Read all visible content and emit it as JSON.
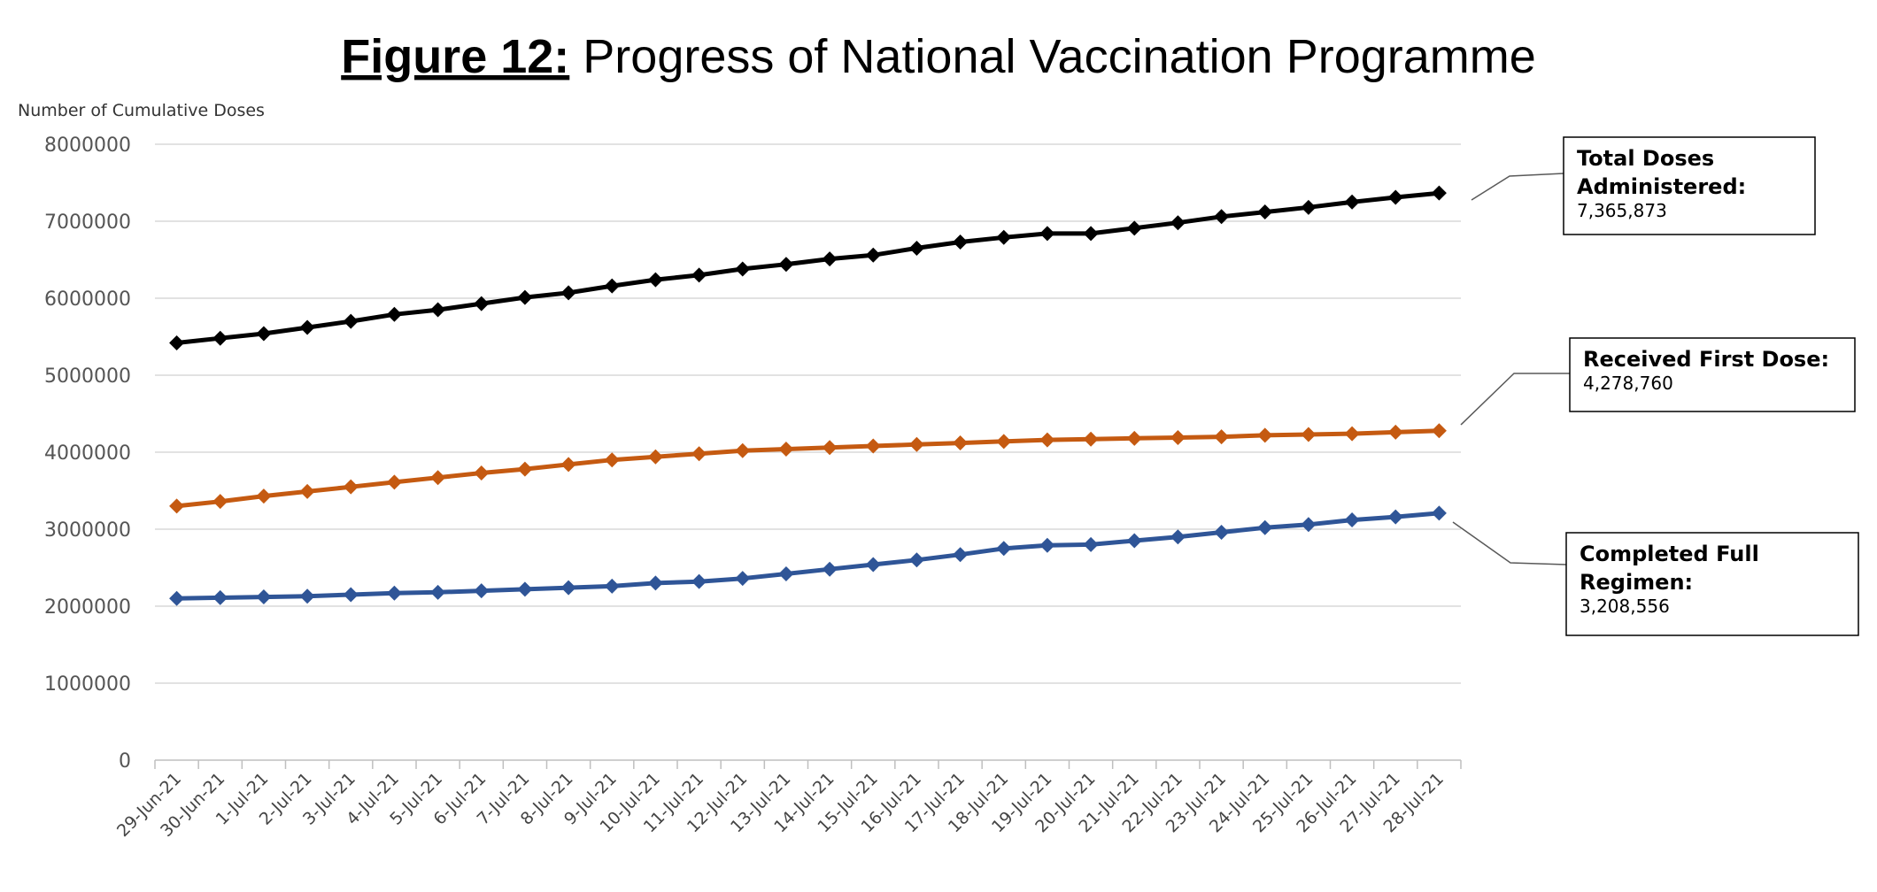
{
  "figure_label": "Figure 12:",
  "figure_title": " Progress of National Vaccination Programme",
  "chart_data": {
    "type": "line",
    "title": "Figure 12: Progress of National Vaccination Programme",
    "ylabel": "Number of Cumulative Doses",
    "xlabel": "",
    "ylim": [
      0,
      8000000
    ],
    "yticks": [
      0,
      1000000,
      2000000,
      3000000,
      4000000,
      5000000,
      6000000,
      7000000,
      8000000
    ],
    "grid": true,
    "legend": "callouts-right",
    "categories": [
      "29-Jun-21",
      "30-Jun-21",
      "1-Jul-21",
      "2-Jul-21",
      "3-Jul-21",
      "4-Jul-21",
      "5-Jul-21",
      "6-Jul-21",
      "7-Jul-21",
      "8-Jul-21",
      "9-Jul-21",
      "10-Jul-21",
      "11-Jul-21",
      "12-Jul-21",
      "13-Jul-21",
      "14-Jul-21",
      "15-Jul-21",
      "16-Jul-21",
      "17-Jul-21",
      "18-Jul-21",
      "19-Jul-21",
      "20-Jul-21",
      "21-Jul-21",
      "22-Jul-21",
      "23-Jul-21",
      "24-Jul-21",
      "25-Jul-21",
      "26-Jul-21",
      "27-Jul-21",
      "28-Jul-21"
    ],
    "series": [
      {
        "key": "total",
        "color": "#000000",
        "values": [
          5420000,
          5480000,
          5540000,
          5620000,
          5700000,
          5790000,
          5850000,
          5930000,
          6010000,
          6070000,
          6160000,
          6240000,
          6300000,
          6380000,
          6440000,
          6510000,
          6560000,
          6650000,
          6730000,
          6790000,
          6840000,
          6840000,
          6910000,
          6980000,
          7060000,
          7120000,
          7180000,
          7250000,
          7310000,
          7365873
        ],
        "callout": {
          "lines": [
            "Total Doses",
            "Administered:"
          ],
          "value": "7,365,873"
        }
      },
      {
        "key": "first",
        "color": "#C55A11",
        "values": [
          3300000,
          3360000,
          3430000,
          3490000,
          3550000,
          3610000,
          3670000,
          3730000,
          3780000,
          3840000,
          3900000,
          3940000,
          3980000,
          4020000,
          4040000,
          4060000,
          4080000,
          4100000,
          4120000,
          4140000,
          4160000,
          4170000,
          4180000,
          4190000,
          4200000,
          4220000,
          4230000,
          4240000,
          4260000,
          4278760
        ],
        "callout": {
          "lines": [
            "Received First Dose:"
          ],
          "value": "4,278,760"
        }
      },
      {
        "key": "full",
        "color": "#2F5597",
        "values": [
          2100000,
          2110000,
          2120000,
          2130000,
          2150000,
          2170000,
          2180000,
          2200000,
          2220000,
          2240000,
          2260000,
          2300000,
          2320000,
          2360000,
          2420000,
          2480000,
          2540000,
          2600000,
          2670000,
          2750000,
          2790000,
          2800000,
          2850000,
          2900000,
          2960000,
          3020000,
          3060000,
          3120000,
          3160000,
          3208556
        ],
        "callout": {
          "lines": [
            "Completed Full",
            "Regimen:"
          ],
          "value": "3,208,556"
        }
      }
    ]
  }
}
